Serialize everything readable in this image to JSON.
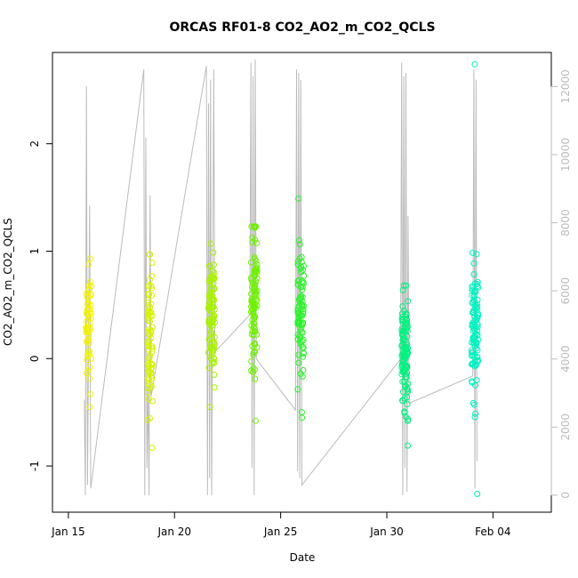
{
  "chart_data": {
    "type": "scatter",
    "title": "ORCAS RF01-8 CO2_AO2_m_CO2_QCLS",
    "xlabel": "Date",
    "ylabel": "CO2_AO2_m_CO2_QCLS",
    "xlim": [
      14.25,
      37.75
    ],
    "ylim": [
      -1.43,
      2.85
    ],
    "y2lim": [
      -500,
      13000
    ],
    "x_ticks": [
      {
        "value": 15,
        "label": "Jan 15"
      },
      {
        "value": 20,
        "label": "Jan 20"
      },
      {
        "value": 25,
        "label": "Jan 25"
      },
      {
        "value": 30,
        "label": "Jan 30"
      },
      {
        "value": 35,
        "label": "Feb 04"
      }
    ],
    "y_ticks": [
      {
        "value": -1,
        "label": "-1"
      },
      {
        "value": 0,
        "label": "0"
      },
      {
        "value": 1,
        "label": "1"
      },
      {
        "value": 2,
        "label": "2"
      }
    ],
    "y2_ticks": [
      {
        "value": 0,
        "label": "0"
      },
      {
        "value": 2000,
        "label": "2000"
      },
      {
        "value": 4000,
        "label": "4000"
      },
      {
        "value": 6000,
        "label": "6000"
      },
      {
        "value": 8000,
        "label": "8000"
      },
      {
        "value": 10000,
        "label": "10000"
      },
      {
        "value": 12000,
        "label": "12000"
      }
    ],
    "colors": {
      "altitude_line": "#bbbbbb",
      "flight_colors": [
        "#f2f200",
        "#d4f200",
        "#a8f200",
        "#6ef200",
        "#2cf22c",
        "#00f280",
        "#00f2c0"
      ]
    },
    "altitude_series": {
      "name": "",
      "points": [
        [
          15.75,
          2800
        ],
        [
          15.8,
          0
        ],
        [
          15.85,
          12000
        ],
        [
          15.9,
          300
        ],
        [
          16.0,
          8500
        ],
        [
          16.05,
          200
        ],
        [
          18.55,
          12500
        ],
        [
          18.6,
          0
        ],
        [
          18.65,
          10500
        ],
        [
          18.7,
          800
        ],
        [
          18.75,
          3200
        ],
        [
          18.8,
          0
        ],
        [
          18.85,
          8800
        ],
        [
          18.9,
          2900
        ],
        [
          21.5,
          12600
        ],
        [
          21.55,
          0
        ],
        [
          21.6,
          11500
        ],
        [
          21.65,
          500
        ],
        [
          21.7,
          12200
        ],
        [
          21.75,
          0
        ],
        [
          21.85,
          12500
        ],
        [
          21.9,
          4200
        ],
        [
          23.55,
          5300
        ],
        [
          23.6,
          12700
        ],
        [
          23.65,
          800
        ],
        [
          23.7,
          12300
        ],
        [
          23.75,
          0
        ],
        [
          23.8,
          12800
        ],
        [
          23.85,
          4000
        ],
        [
          25.7,
          2500
        ],
        [
          25.75,
          12500
        ],
        [
          25.8,
          700
        ],
        [
          25.85,
          12400
        ],
        [
          25.9,
          500
        ],
        [
          25.95,
          12200
        ],
        [
          26.0,
          300
        ],
        [
          30.65,
          4000
        ],
        [
          30.7,
          12700
        ],
        [
          30.75,
          0
        ],
        [
          30.8,
          12300
        ],
        [
          30.85,
          800
        ],
        [
          30.9,
          12400
        ],
        [
          30.95,
          100
        ],
        [
          31.0,
          8200
        ],
        [
          31.05,
          2700
        ],
        [
          34.05,
          3500
        ],
        [
          34.1,
          12500
        ],
        [
          34.15,
          200
        ],
        [
          34.2,
          12200
        ],
        [
          34.25,
          1000
        ]
      ]
    },
    "series": [
      {
        "name": "",
        "color": "#f2f200",
        "center": 15.95,
        "spread": 0.12,
        "count": 60,
        "ymean": 0.35,
        "ysd": 0.26,
        "ymin": -0.45,
        "ymax": 0.93
      },
      {
        "name": "",
        "color": "#d4f200",
        "center": 18.85,
        "spread": 0.12,
        "count": 80,
        "ymean": 0.15,
        "ysd": 0.35,
        "ymin": -0.83,
        "ymax": 0.97
      },
      {
        "name": "",
        "color": "#a8f200",
        "center": 21.75,
        "spread": 0.15,
        "count": 100,
        "ymean": 0.42,
        "ysd": 0.3,
        "ymin": -0.45,
        "ymax": 1.07
      },
      {
        "name": "",
        "color": "#6ef200",
        "center": 23.75,
        "spread": 0.15,
        "count": 100,
        "ymean": 0.55,
        "ysd": 0.32,
        "ymin": -0.58,
        "ymax": 1.23
      },
      {
        "name": "",
        "color": "#2cf22c",
        "center": 25.95,
        "spread": 0.15,
        "count": 90,
        "ymean": 0.45,
        "ysd": 0.28,
        "ymin": -0.55,
        "ymax": 1.49
      },
      {
        "name": "",
        "color": "#00f280",
        "center": 30.85,
        "spread": 0.15,
        "count": 120,
        "ymean": 0.05,
        "ysd": 0.3,
        "ymin": -0.81,
        "ymax": 0.68
      },
      {
        "name": "",
        "color": "#00f2c0",
        "center": 34.15,
        "spread": 0.16,
        "count": 110,
        "ymean": 0.25,
        "ysd": 0.3,
        "ymin": -1.26,
        "ymax": 2.74
      }
    ]
  }
}
